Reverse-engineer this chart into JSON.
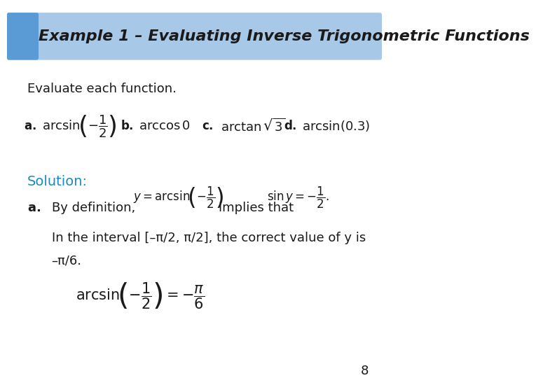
{
  "title": "Example 1 – Evaluating Inverse Trigonometric Functions",
  "title_bg_color": "#a8c8e8",
  "title_text_color": "#1a1a1a",
  "title_font_size": 16,
  "bg_color": "#ffffff",
  "corner_box_color": "#5b9bd5",
  "solution_color": "#1a8bbf",
  "body_text_color": "#1a1a1a",
  "page_number": "8",
  "evaluate_text": "Evaluate each function.",
  "solution_text": "Solution:",
  "part_a_line1": "a.    By definition,",
  "part_a_formula1": "y = arcsin\\!\\left(-\\dfrac{1}{2}\\right)",
  "part_a_mid": " implies that",
  "part_a_formula2": "\\sin y = -\\dfrac{1}{2}.",
  "part_a_line2": "In the interval [–π/2, π/2], the correct value of y is",
  "part_a_line3": "–π/6.",
  "final_formula": "\\arcsin\\!\\left(-\\dfrac{1}{2}\\right) = -\\dfrac{\\pi}{6}"
}
